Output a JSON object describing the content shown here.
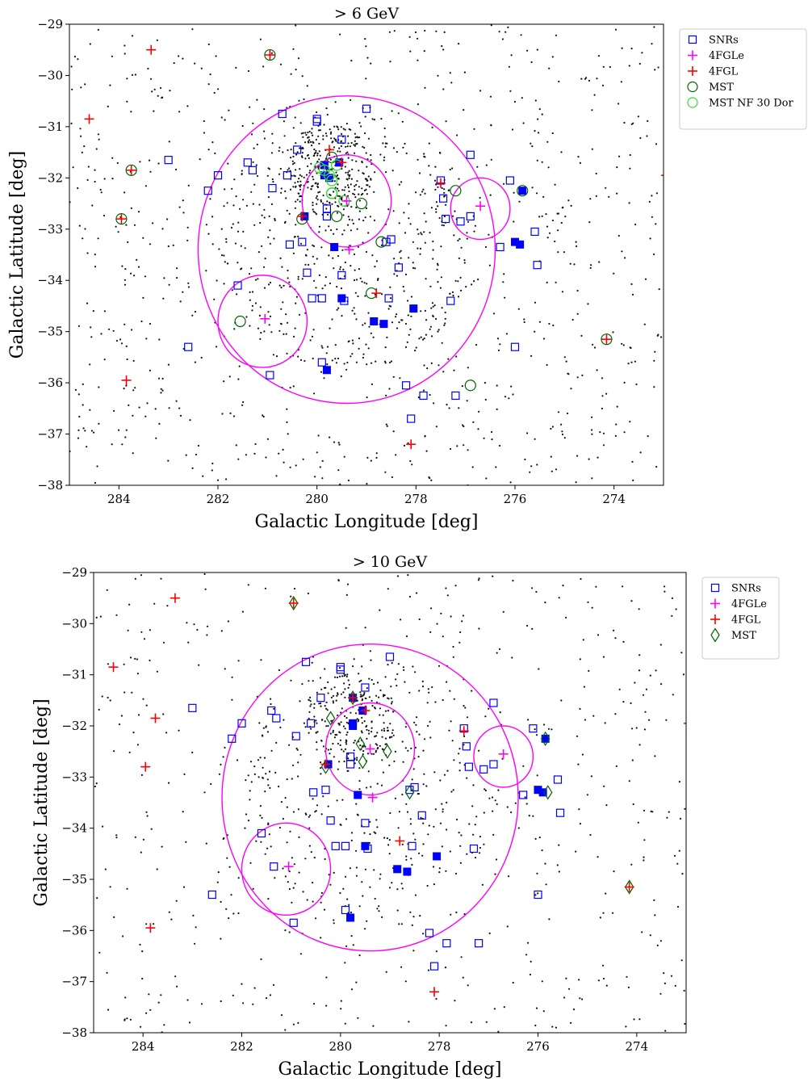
{
  "chart_data": [
    {
      "type": "scatter",
      "title": "> 6 GeV",
      "xlabel": "Galactic Longitude [deg]",
      "ylabel": "Galactic Latitude [deg]",
      "xlim": [
        285,
        273
      ],
      "ylim": [
        -38,
        -29
      ],
      "xticks": [
        284,
        282,
        280,
        278,
        276,
        274
      ],
      "yticks": [
        -29,
        -30,
        -31,
        -32,
        -33,
        -34,
        -35,
        -36,
        -37,
        -38
      ],
      "xtick_labels": [
        "284",
        "282",
        "280",
        "278",
        "276",
        "274"
      ],
      "ytick_labels": [
        "−29",
        "−30",
        "−31",
        "−32",
        "−33",
        "−34",
        "−35",
        "−36",
        "−37",
        "−38"
      ],
      "legend_position": "outside-top-right",
      "legend": [
        {
          "label": "SNRs",
          "marker": "square-open",
          "color": "#0000ff"
        },
        {
          "label": "4FGLe",
          "marker": "plus",
          "color": "#ff00ff"
        },
        {
          "label": "4FGL",
          "marker": "plus",
          "color": "#ff0000"
        },
        {
          "label": "MST",
          "marker": "circle-open",
          "color": "#006400"
        },
        {
          "label": "MST NF 30 Dor",
          "marker": "circle-open",
          "color": "#33dd33"
        }
      ],
      "photon_seed": 6,
      "photon_count": 1500,
      "ellipses": [
        {
          "l": 279.4,
          "b": -33.4,
          "rl": 3.0,
          "rb": 3.0,
          "color": "#ff00ff"
        },
        {
          "l": 279.4,
          "b": -32.45,
          "rl": 0.9,
          "rb": 0.9,
          "color": "#ff00ff"
        },
        {
          "l": 281.1,
          "b": -34.8,
          "rl": 0.9,
          "rb": 0.9,
          "color": "#ff00ff"
        },
        {
          "l": 276.7,
          "b": -32.6,
          "rl": 0.6,
          "rb": 0.6,
          "color": "#ff00ff"
        }
      ],
      "snr_open": [
        [
          283.0,
          -31.65
        ],
        [
          282.2,
          -32.25
        ],
        [
          282.0,
          -31.95
        ],
        [
          281.4,
          -31.7
        ],
        [
          281.3,
          -31.85
        ],
        [
          281.6,
          -34.1
        ],
        [
          280.9,
          -32.2
        ],
        [
          280.6,
          -31.95
        ],
        [
          280.4,
          -31.45
        ],
        [
          280.0,
          -30.9
        ],
        [
          280.0,
          -30.85
        ],
        [
          279.5,
          -31.25
        ],
        [
          279.0,
          -30.65
        ],
        [
          280.7,
          -30.75
        ],
        [
          280.3,
          -33.25
        ],
        [
          280.55,
          -33.3
        ],
        [
          280.2,
          -33.85
        ],
        [
          279.8,
          -32.6
        ],
        [
          279.8,
          -32.75
        ],
        [
          280.1,
          -34.35
        ],
        [
          279.9,
          -34.35
        ],
        [
          279.5,
          -33.9
        ],
        [
          279.45,
          -34.4
        ],
        [
          279.9,
          -35.6
        ],
        [
          280.95,
          -35.85
        ],
        [
          278.6,
          -33.25
        ],
        [
          278.5,
          -33.2
        ],
        [
          278.35,
          -33.75
        ],
        [
          278.55,
          -34.35
        ],
        [
          277.5,
          -32.05
        ],
        [
          277.45,
          -32.4
        ],
        [
          277.4,
          -32.8
        ],
        [
          277.1,
          -32.85
        ],
        [
          276.9,
          -31.55
        ],
        [
          276.9,
          -32.75
        ],
        [
          276.1,
          -32.05
        ],
        [
          276.3,
          -33.35
        ],
        [
          275.6,
          -33.05
        ],
        [
          275.55,
          -33.7
        ],
        [
          276.0,
          -35.3
        ],
        [
          277.3,
          -34.4
        ],
        [
          277.85,
          -36.25
        ],
        [
          277.2,
          -36.25
        ],
        [
          278.2,
          -36.05
        ],
        [
          278.1,
          -36.7
        ],
        [
          282.6,
          -35.3
        ]
      ],
      "snr_filled": [
        [
          279.85,
          -31.75
        ],
        [
          279.85,
          -31.95
        ],
        [
          279.55,
          -31.7
        ],
        [
          279.75,
          -32.0
        ],
        [
          279.65,
          -33.35
        ],
        [
          279.5,
          -34.35
        ],
        [
          278.85,
          -34.8
        ],
        [
          278.65,
          -34.85
        ],
        [
          278.05,
          -34.55
        ],
        [
          279.8,
          -35.75
        ],
        [
          275.85,
          -32.25
        ],
        [
          276.0,
          -33.25
        ],
        [
          275.9,
          -33.3
        ],
        [
          280.25,
          -32.75
        ]
      ],
      "fgle": [
        [
          279.4,
          -32.45
        ],
        [
          279.35,
          -33.4
        ],
        [
          281.05,
          -34.75
        ],
        [
          276.7,
          -32.55
        ]
      ],
      "fgl": [
        [
          283.35,
          -29.5
        ],
        [
          284.6,
          -30.85
        ],
        [
          283.75,
          -31.85
        ],
        [
          283.95,
          -32.8
        ],
        [
          280.95,
          -29.6
        ],
        [
          279.75,
          -31.45
        ],
        [
          279.5,
          -31.7
        ],
        [
          280.3,
          -32.75
        ],
        [
          278.8,
          -34.25
        ],
        [
          277.5,
          -32.1
        ],
        [
          274.15,
          -35.15
        ],
        [
          283.85,
          -35.95
        ],
        [
          278.1,
          -37.2
        ],
        [
          272.95,
          -31.95
        ]
      ],
      "mst": [
        [
          280.95,
          -29.6
        ],
        [
          283.75,
          -31.85
        ],
        [
          283.95,
          -32.8
        ],
        [
          279.6,
          -32.75
        ],
        [
          279.7,
          -32.3
        ],
        [
          279.1,
          -32.5
        ],
        [
          278.7,
          -33.25
        ],
        [
          278.9,
          -34.25
        ],
        [
          277.2,
          -32.25
        ],
        [
          275.85,
          -32.25
        ],
        [
          274.15,
          -35.15
        ],
        [
          276.9,
          -36.05
        ],
        [
          281.55,
          -34.8
        ],
        [
          279.7,
          -31.6
        ],
        [
          280.3,
          -32.8
        ]
      ],
      "mst_nf": [
        [
          279.95,
          -31.8
        ],
        [
          279.85,
          -31.85
        ],
        [
          279.75,
          -31.95
        ],
        [
          279.7,
          -32.05
        ],
        [
          279.6,
          -31.75
        ],
        [
          279.45,
          -32.45
        ],
        [
          279.7,
          -32.3
        ]
      ]
    },
    {
      "type": "scatter",
      "title": "> 10 GeV",
      "xlabel": "Galactic Longitude [deg]",
      "ylabel": "Galactic Latitude [deg]",
      "xlim": [
        285,
        273
      ],
      "ylim": [
        -38,
        -29
      ],
      "xticks": [
        284,
        282,
        280,
        278,
        276,
        274
      ],
      "yticks": [
        -29,
        -30,
        -31,
        -32,
        -33,
        -34,
        -35,
        -36,
        -37,
        -38
      ],
      "xtick_labels": [
        "284",
        "282",
        "280",
        "278",
        "276",
        "274"
      ],
      "ytick_labels": [
        "−29",
        "−30",
        "−31",
        "−32",
        "−33",
        "−34",
        "−35",
        "−36",
        "−37",
        "−38"
      ],
      "legend_position": "outside-top-right",
      "legend": [
        {
          "label": "SNRs",
          "marker": "square-open",
          "color": "#0000ff"
        },
        {
          "label": "4FGLe",
          "marker": "plus",
          "color": "#ff00ff"
        },
        {
          "label": "4FGL",
          "marker": "plus",
          "color": "#ff0000"
        },
        {
          "label": "MST",
          "marker": "diamond-open",
          "color": "#006400"
        }
      ],
      "photon_seed": 10,
      "photon_count": 1050,
      "ellipses": [
        {
          "l": 279.4,
          "b": -33.4,
          "rl": 3.0,
          "rb": 3.0,
          "color": "#ff00ff"
        },
        {
          "l": 279.4,
          "b": -32.45,
          "rl": 0.9,
          "rb": 0.9,
          "color": "#ff00ff"
        },
        {
          "l": 281.1,
          "b": -34.8,
          "rl": 0.9,
          "rb": 0.9,
          "color": "#ff00ff"
        },
        {
          "l": 276.7,
          "b": -32.6,
          "rl": 0.6,
          "rb": 0.6,
          "color": "#ff00ff"
        }
      ],
      "snr_open": [
        [
          283.0,
          -31.65
        ],
        [
          282.2,
          -32.25
        ],
        [
          282.0,
          -31.95
        ],
        [
          281.4,
          -31.7
        ],
        [
          281.3,
          -31.85
        ],
        [
          281.6,
          -34.1
        ],
        [
          280.9,
          -32.2
        ],
        [
          280.6,
          -31.95
        ],
        [
          280.4,
          -31.45
        ],
        [
          280.0,
          -30.9
        ],
        [
          280.0,
          -30.85
        ],
        [
          279.5,
          -31.25
        ],
        [
          279.0,
          -30.65
        ],
        [
          280.7,
          -30.75
        ],
        [
          280.3,
          -33.25
        ],
        [
          280.55,
          -33.3
        ],
        [
          280.2,
          -33.85
        ],
        [
          279.8,
          -32.6
        ],
        [
          279.8,
          -32.75
        ],
        [
          280.1,
          -34.35
        ],
        [
          279.9,
          -34.35
        ],
        [
          279.5,
          -33.9
        ],
        [
          279.45,
          -34.4
        ],
        [
          279.9,
          -35.6
        ],
        [
          280.95,
          -35.85
        ],
        [
          278.6,
          -33.25
        ],
        [
          278.5,
          -33.2
        ],
        [
          278.35,
          -33.75
        ],
        [
          278.55,
          -34.35
        ],
        [
          277.5,
          -32.05
        ],
        [
          277.45,
          -32.4
        ],
        [
          277.4,
          -32.8
        ],
        [
          277.1,
          -32.85
        ],
        [
          276.9,
          -31.55
        ],
        [
          276.9,
          -32.75
        ],
        [
          276.1,
          -32.05
        ],
        [
          276.3,
          -33.35
        ],
        [
          275.6,
          -33.05
        ],
        [
          275.55,
          -33.7
        ],
        [
          276.0,
          -35.3
        ],
        [
          277.3,
          -34.4
        ],
        [
          277.85,
          -36.25
        ],
        [
          277.2,
          -36.25
        ],
        [
          278.2,
          -36.05
        ],
        [
          278.1,
          -36.7
        ],
        [
          282.6,
          -35.3
        ],
        [
          281.35,
          -34.75
        ]
      ],
      "snr_filled": [
        [
          279.75,
          -31.45
        ],
        [
          279.75,
          -31.95
        ],
        [
          279.55,
          -31.7
        ],
        [
          279.75,
          -32.0
        ],
        [
          279.65,
          -33.35
        ],
        [
          279.5,
          -34.35
        ],
        [
          278.85,
          -34.8
        ],
        [
          278.65,
          -34.85
        ],
        [
          278.05,
          -34.55
        ],
        [
          279.8,
          -35.75
        ],
        [
          275.85,
          -32.25
        ],
        [
          276.0,
          -33.25
        ],
        [
          275.9,
          -33.3
        ],
        [
          280.25,
          -32.75
        ]
      ],
      "fgle": [
        [
          279.4,
          -32.45
        ],
        [
          279.35,
          -33.4
        ],
        [
          281.05,
          -34.75
        ],
        [
          276.7,
          -32.55
        ]
      ],
      "fgl": [
        [
          283.35,
          -29.5
        ],
        [
          284.6,
          -30.85
        ],
        [
          283.75,
          -31.85
        ],
        [
          283.95,
          -32.8
        ],
        [
          280.95,
          -29.6
        ],
        [
          279.75,
          -31.45
        ],
        [
          279.5,
          -31.7
        ],
        [
          280.3,
          -32.75
        ],
        [
          278.8,
          -34.25
        ],
        [
          277.5,
          -32.1
        ],
        [
          274.15,
          -35.15
        ],
        [
          283.85,
          -35.95
        ],
        [
          278.1,
          -37.2
        ],
        [
          272.95,
          -31.95
        ]
      ],
      "mst": [
        [
          280.95,
          -29.6
        ],
        [
          279.75,
          -31.45
        ],
        [
          280.2,
          -31.85
        ],
        [
          279.6,
          -32.35
        ],
        [
          279.55,
          -32.7
        ],
        [
          279.05,
          -32.5
        ],
        [
          278.6,
          -33.3
        ],
        [
          275.85,
          -32.25
        ],
        [
          275.8,
          -33.3
        ],
        [
          274.15,
          -35.15
        ],
        [
          280.3,
          -32.8
        ]
      ],
      "mst_nf": []
    }
  ]
}
